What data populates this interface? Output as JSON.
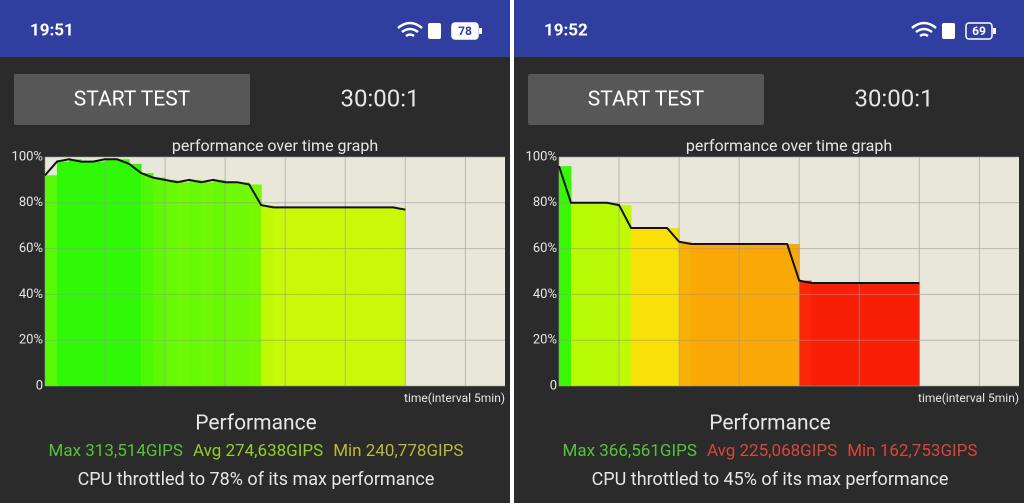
{
  "screens": [
    {
      "time": "19:51",
      "battery": "78",
      "button": "START TEST",
      "timer": "30:00:1",
      "heading": "Performance",
      "stats": [
        {
          "text": "Max 313,514GIPS",
          "color": "#55c23a"
        },
        {
          "text": "Avg 274,638GIPS",
          "color": "#8fcf2a"
        },
        {
          "text": "Min 240,778GIPS",
          "color": "#b8b83a"
        }
      ],
      "summary": "CPU throttled to 78% of its max performance"
    },
    {
      "time": "19:52",
      "battery": "69",
      "button": "START TEST",
      "timer": "30:00:1",
      "heading": "Performance",
      "stats": [
        {
          "text": "Max 366,561GIPS",
          "color": "#55c23a"
        },
        {
          "text": "Avg 225,068GIPS",
          "color": "#d9453a"
        },
        {
          "text": "Min 162,753GIPS",
          "color": "#d9453a"
        }
      ],
      "summary": "CPU throttled to 45% of its max performance"
    }
  ],
  "chart_data": [
    {
      "type": "area",
      "title": "performance over time graph",
      "x_label": "time(interval 5min)",
      "x": [
        0,
        1,
        2,
        3,
        4,
        5,
        6,
        7,
        8,
        9,
        10,
        11,
        12,
        13,
        14,
        15,
        16,
        17,
        18,
        19,
        20,
        21,
        22,
        23,
        24,
        25,
        26,
        27,
        28,
        29,
        30
      ],
      "values": [
        92,
        98,
        99,
        98,
        98,
        99,
        99,
        97,
        93,
        91,
        90,
        89,
        90,
        89,
        90,
        89,
        89,
        88,
        79,
        78,
        78,
        78,
        78,
        78,
        78,
        78,
        78,
        78,
        78,
        78,
        77
      ],
      "xlim": [
        0,
        38.3
      ],
      "xgrid": [
        0,
        5,
        10,
        15,
        20,
        25,
        30,
        35
      ],
      "ylim": [
        0,
        100
      ],
      "yticks": [
        0,
        {
          "value": 20,
          "label": "20%"
        },
        {
          "value": 40,
          "label": "40%"
        },
        {
          "value": 60,
          "label": "60%"
        },
        {
          "value": 80,
          "label": "80%"
        },
        {
          "value": 100,
          "label": "100%"
        }
      ],
      "grid": true
    },
    {
      "type": "area",
      "title": "performance over time graph",
      "x_label": "time(interval 5min)",
      "x": [
        0,
        1,
        2,
        3,
        4,
        5,
        6,
        7,
        8,
        9,
        10,
        11,
        12,
        13,
        14,
        15,
        16,
        17,
        18,
        19,
        20,
        21,
        22,
        23,
        24,
        25,
        26,
        27,
        28,
        29,
        30
      ],
      "values": [
        96,
        80,
        80,
        80,
        80,
        79,
        69,
        69,
        69,
        69,
        63,
        62,
        62,
        62,
        62,
        62,
        62,
        62,
        62,
        62,
        46,
        45,
        45,
        45,
        45,
        45,
        45,
        45,
        45,
        45,
        45
      ],
      "xlim": [
        0,
        38.3
      ],
      "xgrid": [
        0,
        5,
        10,
        15,
        20,
        25,
        30,
        35
      ],
      "ylim": [
        0,
        100
      ],
      "yticks": [
        0,
        {
          "value": 20,
          "label": "20%"
        },
        {
          "value": 40,
          "label": "40%"
        },
        {
          "value": 60,
          "label": "60%"
        },
        {
          "value": 80,
          "label": "80%"
        },
        {
          "value": 100,
          "label": "100%"
        }
      ],
      "grid": true
    }
  ]
}
